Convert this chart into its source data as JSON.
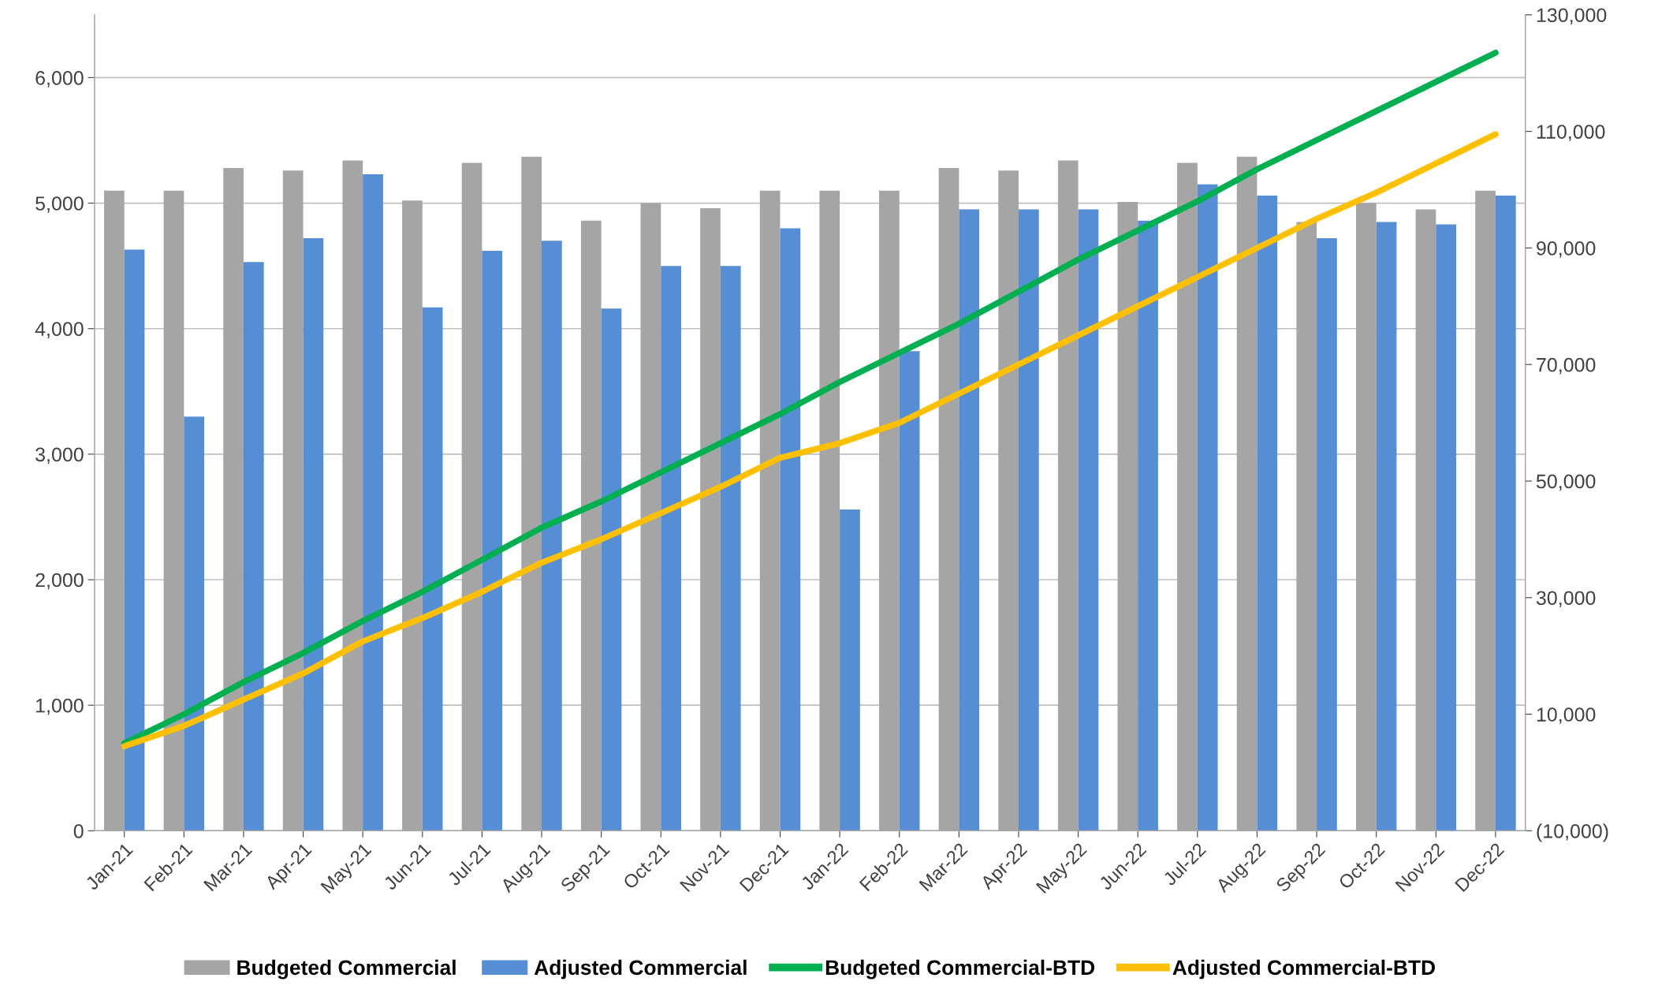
{
  "chart_data": {
    "type": "bar",
    "categories": [
      "Jan-21",
      "Feb-21",
      "Mar-21",
      "Apr-21",
      "May-21",
      "Jun-21",
      "Jul-21",
      "Aug-21",
      "Sep-21",
      "Oct-21",
      "Nov-21",
      "Dec-21",
      "Jan-22",
      "Feb-22",
      "Mar-22",
      "Apr-22",
      "May-22",
      "Jun-22",
      "Jul-22",
      "Aug-22",
      "Sep-22",
      "Oct-22",
      "Nov-22",
      "Dec-22"
    ],
    "series": [
      {
        "name": "Budgeted Commercial",
        "color": "#a5a5a5",
        "values": [
          5100,
          5100,
          5280,
          5260,
          5340,
          5020,
          5320,
          5370,
          4860,
          5000,
          4960,
          5100,
          5100,
          5100,
          5280,
          5260,
          5340,
          5010,
          5320,
          5370,
          4850,
          5000,
          4950,
          5100
        ]
      },
      {
        "name": "Adjusted Commercial",
        "color": "#558ed5",
        "values": [
          4630,
          3300,
          4530,
          4720,
          5230,
          4170,
          4620,
          4700,
          4160,
          4500,
          4500,
          4800,
          2560,
          3820,
          4950,
          4950,
          4950,
          4860,
          5150,
          5060,
          4720,
          4850,
          4830,
          5060
        ]
      },
      {
        "name": "Budgeted Commercial-BTD",
        "type": "line",
        "axis": "y2",
        "color": "#00b050",
        "values": [
          5000,
          10000,
          15500,
          20500,
          26000,
          31000,
          36500,
          42000,
          46500,
          51500,
          56500,
          61500,
          67000,
          72000,
          77000,
          82500,
          88000,
          93000,
          98000,
          103500,
          108500,
          113500,
          118500,
          123500
        ]
      },
      {
        "name": "Adjusted Commercial-BTD",
        "type": "line",
        "axis": "y2",
        "color": "#ffc000",
        "values": [
          4500,
          8000,
          12500,
          17000,
          22500,
          26500,
          31000,
          36000,
          40000,
          44500,
          49000,
          54000,
          56500,
          60000,
          65000,
          70000,
          75000,
          80000,
          85000,
          90000,
          95000,
          99500,
          104500,
          109500
        ]
      }
    ],
    "ylim": [
      0,
      6500
    ],
    "yticks": [
      0,
      {
        "value": 1000,
        "label": "1,000"
      },
      {
        "value": 2000,
        "label": "2,000"
      },
      {
        "value": 3000,
        "label": "3,000"
      },
      {
        "value": 4000,
        "label": "4,000"
      },
      {
        "value": 5000,
        "label": "5,000"
      },
      {
        "value": 6000,
        "label": "6,000"
      }
    ],
    "y2lim": [
      -10000,
      130000
    ],
    "y2ticks": [
      {
        "value": -10000,
        "label": "(10,000)"
      },
      {
        "value": 10000,
        "label": "10,000"
      },
      {
        "value": 30000,
        "label": "30,000"
      },
      {
        "value": 50000,
        "label": "50,000"
      },
      {
        "value": 70000,
        "label": "70,000"
      },
      {
        "value": 90000,
        "label": "90,000"
      },
      {
        "value": 110000,
        "label": "110,000"
      },
      {
        "value": 130000,
        "label": "130,000"
      }
    ],
    "grid": "y",
    "legend": "bottom",
    "marker": "none",
    "line_style": "solid"
  }
}
